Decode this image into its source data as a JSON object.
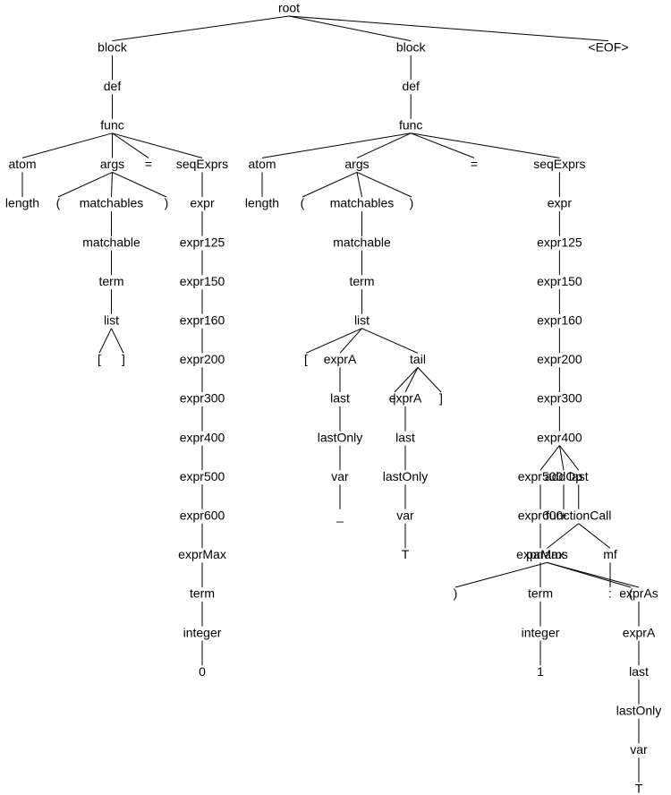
{
  "colors": {
    "text": "#000000",
    "edges": "#000000",
    "background": "#ffffff"
  },
  "tree": {
    "label": "root",
    "children": [
      {
        "label": "block",
        "children": [
          {
            "label": "def",
            "children": [
              {
                "label": "func",
                "children": [
                  {
                    "label": "atom",
                    "children": [
                      {
                        "label": "length"
                      }
                    ]
                  },
                  {
                    "label": "args",
                    "children": [
                      {
                        "label": "("
                      },
                      {
                        "label": "matchables",
                        "children": [
                          {
                            "label": "matchable",
                            "children": [
                              {
                                "label": "term",
                                "children": [
                                  {
                                    "label": "list",
                                    "children": [
                                      {
                                        "label": "["
                                      },
                                      {
                                        "label": "]"
                                      }
                                    ]
                                  }
                                ]
                              }
                            ]
                          }
                        ]
                      },
                      {
                        "label": ")"
                      }
                    ]
                  },
                  {
                    "label": "="
                  },
                  {
                    "label": "seqExprs",
                    "children": [
                      {
                        "label": "expr",
                        "children": [
                          {
                            "label": "expr125",
                            "children": [
                              {
                                "label": "expr150",
                                "children": [
                                  {
                                    "label": "expr160",
                                    "children": [
                                      {
                                        "label": "expr200",
                                        "children": [
                                          {
                                            "label": "expr300",
                                            "children": [
                                              {
                                                "label": "expr400",
                                                "children": [
                                                  {
                                                    "label": "expr500",
                                                    "children": [
                                                      {
                                                        "label": "expr600",
                                                        "children": [
                                                          {
                                                            "label": "exprMax",
                                                            "children": [
                                                              {
                                                                "label": "term",
                                                                "children": [
                                                                  {
                                                                    "label": "integer",
                                                                    "children": [
                                                                      {
                                                                        "label": "0"
                                                                      }
                                                                    ]
                                                                  }
                                                                ]
                                                              }
                                                            ]
                                                          }
                                                        ]
                                                      }
                                                    ]
                                                  }
                                                ]
                                              }
                                            ]
                                          }
                                        ]
                                      }
                                    ]
                                  }
                                ]
                              }
                            ]
                          }
                        ]
                      }
                    ]
                  }
                ]
              }
            ]
          }
        ]
      },
      {
        "label": "block",
        "children": [
          {
            "label": "def",
            "children": [
              {
                "label": "func",
                "children": [
                  {
                    "label": "atom",
                    "children": [
                      {
                        "label": "length"
                      }
                    ]
                  },
                  {
                    "label": "args",
                    "children": [
                      {
                        "label": "("
                      },
                      {
                        "label": "matchables",
                        "children": [
                          {
                            "label": "matchable",
                            "children": [
                              {
                                "label": "term",
                                "children": [
                                  {
                                    "label": "list",
                                    "children": [
                                      {
                                        "label": "["
                                      },
                                      {
                                        "label": "exprA",
                                        "children": [
                                          {
                                            "label": "last",
                                            "children": [
                                              {
                                                "label": "lastOnly",
                                                "children": [
                                                  {
                                                    "label": "var",
                                                    "children": [
                                                      {
                                                        "label": "_"
                                                      }
                                                    ]
                                                  }
                                                ]
                                              }
                                            ]
                                          }
                                        ]
                                      },
                                      {
                                        "label": "tail",
                                        "children": [
                                          {
                                            "label": "|"
                                          },
                                          {
                                            "label": "exprA",
                                            "children": [
                                              {
                                                "label": "last",
                                                "children": [
                                                  {
                                                    "label": "lastOnly",
                                                    "children": [
                                                      {
                                                        "label": "var",
                                                        "children": [
                                                          {
                                                            "label": "T"
                                                          }
                                                        ]
                                                      }
                                                    ]
                                                  }
                                                ]
                                              }
                                            ]
                                          },
                                          {
                                            "label": "]"
                                          }
                                        ]
                                      }
                                    ]
                                  }
                                ]
                              }
                            ]
                          }
                        ]
                      },
                      {
                        "label": ")"
                      }
                    ]
                  },
                  {
                    "label": "="
                  },
                  {
                    "label": "seqExprs",
                    "children": [
                      {
                        "label": "expr",
                        "children": [
                          {
                            "label": "expr125",
                            "children": [
                              {
                                "label": "expr150",
                                "children": [
                                  {
                                    "label": "expr160",
                                    "children": [
                                      {
                                        "label": "expr200",
                                        "children": [
                                          {
                                            "label": "expr300",
                                            "children": [
                                              {
                                                "label": "expr400",
                                                "children": [
                                                  {
                                                    "label": "expr500",
                                                    "children": [
                                                      {
                                                        "label": "expr600",
                                                        "children": [
                                                          {
                                                            "label": "exprMax",
                                                            "children": [
                                                              {
                                                                "label": "term",
                                                                "children": [
                                                                  {
                                                                    "label": "integer",
                                                                    "children": [
                                                                      {
                                                                        "label": "1"
                                                                      }
                                                                    ]
                                                                  }
                                                                ]
                                                              }
                                                            ]
                                                          }
                                                        ]
                                                      }
                                                    ]
                                                  },
                                                  {
                                                    "label": "addOp",
                                                    "children": [
                                                      {
                                                        "label": "+"
                                                      }
                                                    ]
                                                  },
                                                  {
                                                    "label": "last",
                                                    "children": [
                                                      {
                                                        "label": "functionCall",
                                                        "children": [
                                                          {
                                                            "label": "mf",
                                                            "children": [
                                                              {
                                                                "label": ":"
                                                              }
                                                            ]
                                                          },
                                                          {
                                                            "label": "params",
                                                            "children": [
                                                              {
                                                                "label": "("
                                                              },
                                                              {
                                                                "label": "exprAs",
                                                                "children": [
                                                                  {
                                                                    "label": "exprA",
                                                                    "children": [
                                                                      {
                                                                        "label": "last",
                                                                        "children": [
                                                                          {
                                                                            "label": "lastOnly",
                                                                            "children": [
                                                                              {
                                                                                "label": "var",
                                                                                "children": [
                                                                                  {
                                                                                    "label": "T"
                                                                                  }
                                                                                ]
                                                                              }
                                                                            ]
                                                                          }
                                                                        ]
                                                                      }
                                                                    ]
                                                                  }
                                                                ]
                                                              },
                                                              {
                                                                "label": ")"
                                                              }
                                                            ]
                                                          }
                                                        ]
                                                      }
                                                    ]
                                                  }
                                                ]
                                              }
                                            ]
                                          }
                                        ]
                                      }
                                    ]
                                  }
                                ]
                              }
                            ]
                          }
                        ]
                      }
                    ]
                  }
                ]
              }
            ]
          }
        ]
      },
      {
        "label": "<EOF>"
      }
    ]
  }
}
